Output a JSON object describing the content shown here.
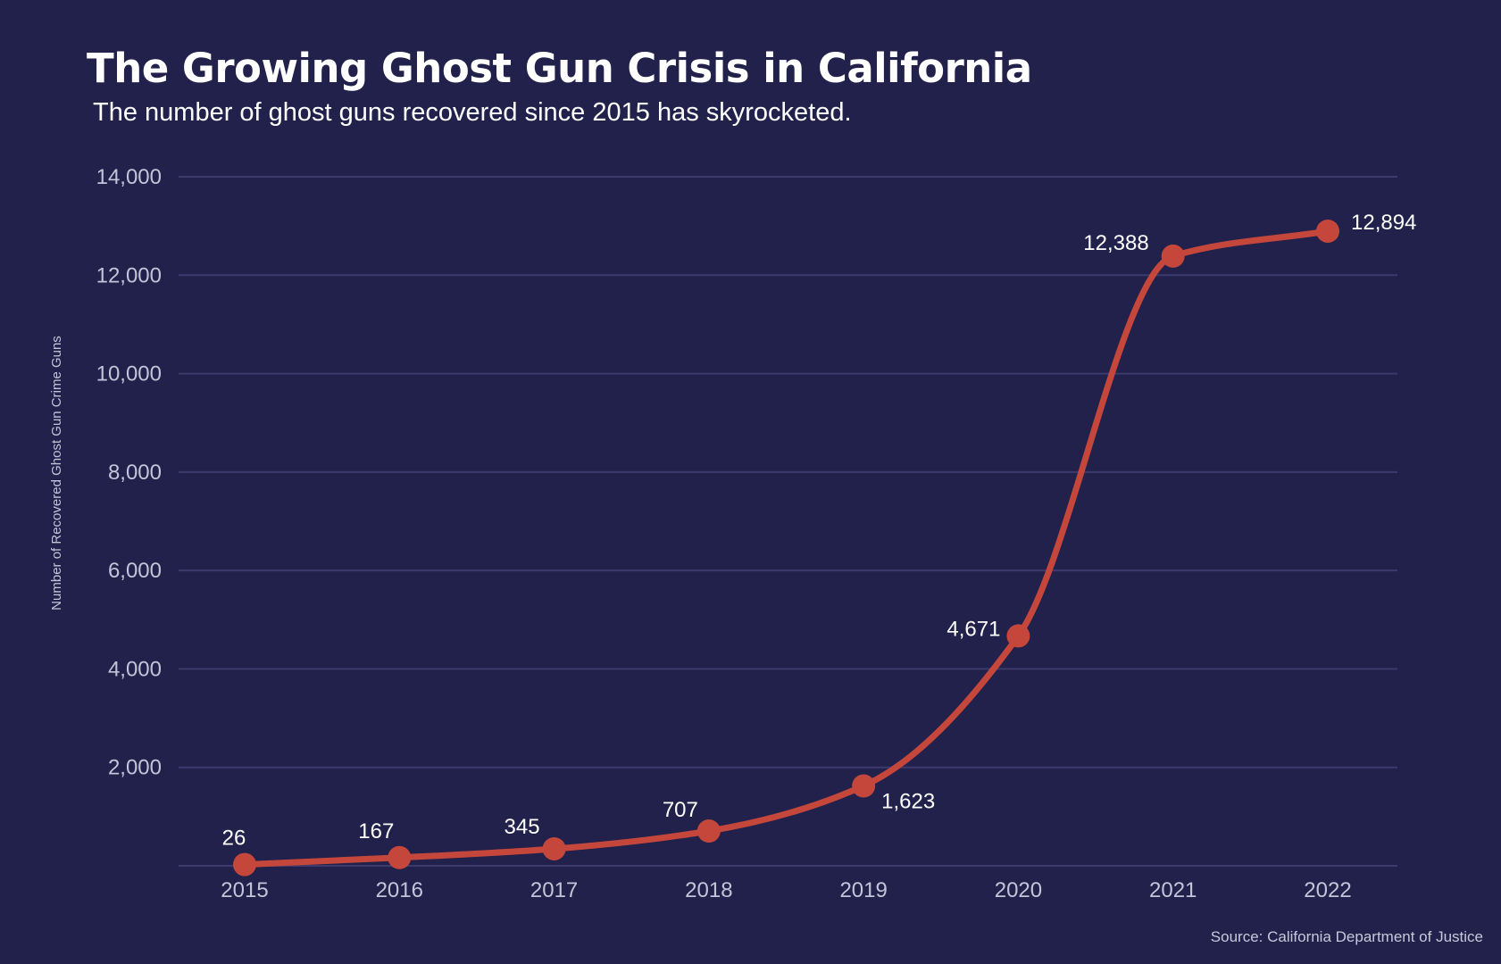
{
  "chart_data": {
    "type": "line",
    "title": "The Growing Ghost Gun Crisis in California",
    "subtitle": "The number of ghost guns recovered since 2015 has skyrocketed.",
    "ylabel": "Number of Recovered Ghost Gun Crime Guns",
    "xlabel": "",
    "source": "Source: California Department of Justice",
    "categories": [
      "2015",
      "2016",
      "2017",
      "2018",
      "2019",
      "2020",
      "2021",
      "2022"
    ],
    "series": [
      {
        "values": [
          26,
          167,
          345,
          707,
          1623,
          4671,
          12388,
          12894
        ],
        "data_labels": [
          "26",
          "167",
          "345",
          "707",
          "1,623",
          "4,671",
          "12,388",
          "12,894"
        ]
      }
    ],
    "ylim": [
      0,
      14000
    ],
    "yticks": [
      2000,
      4000,
      6000,
      8000,
      10000,
      12000,
      14000
    ],
    "ytick_labels": [
      "2,000",
      "4,000",
      "6,000",
      "8,000",
      "10,000",
      "12,000",
      "14,000"
    ],
    "grid": true,
    "colors": {
      "background": "#21214b",
      "line": "#c5473b",
      "grid": "#3b3b6e"
    }
  }
}
